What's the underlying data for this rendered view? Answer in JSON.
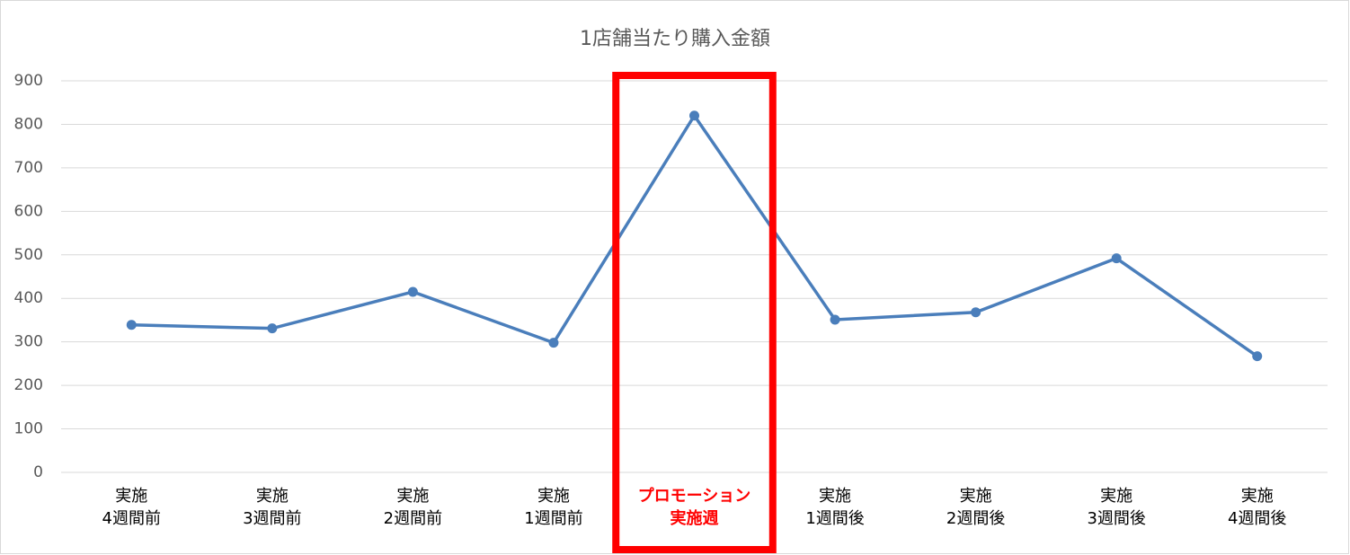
{
  "chart_data": {
    "type": "line",
    "title": "1店舗当たり購入金額",
    "categories": [
      [
        "実施",
        "4週間前"
      ],
      [
        "実施",
        "3週間前"
      ],
      [
        "実施",
        "2週間前"
      ],
      [
        "実施",
        "1週間前"
      ],
      [
        "プロモーション",
        "実施週"
      ],
      [
        "実施",
        "1週間後"
      ],
      [
        "実施",
        "2週間後"
      ],
      [
        "実施",
        "3週間後"
      ],
      [
        "実施",
        "4週間後"
      ]
    ],
    "series": [
      {
        "name": "1店舗当たり購入金額",
        "color": "#4a7ebb",
        "values": [
          339,
          331,
          415,
          298,
          820,
          351,
          368,
          492,
          267
        ]
      }
    ],
    "ylim": [
      0,
      900
    ],
    "yticks": [
      0,
      100,
      200,
      300,
      400,
      500,
      600,
      700,
      800,
      900
    ],
    "grid": true,
    "highlight": {
      "category": 4,
      "color": "#ff0000"
    }
  }
}
